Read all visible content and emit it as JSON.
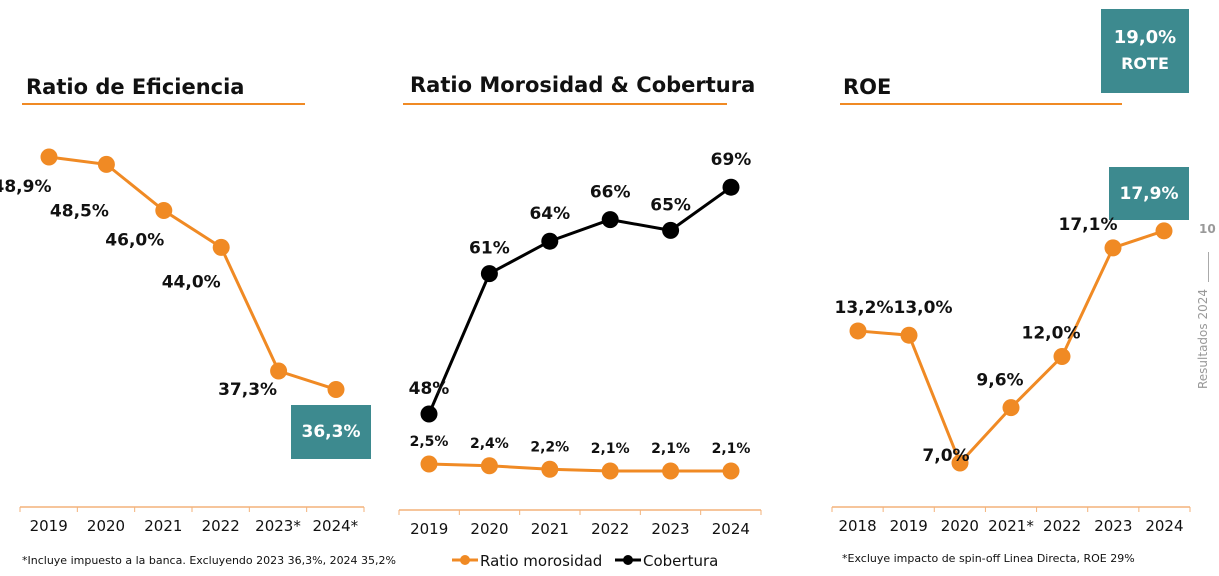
{
  "colors": {
    "orange": "#f08a24",
    "black": "#000000",
    "teal": "#3d8a8f"
  },
  "chart_data": [
    {
      "type": "line",
      "title": "Ratio de Eficiencia",
      "categories": [
        "2019",
        "2020",
        "2021",
        "2022",
        "2023*",
        "2024*"
      ],
      "series": [
        {
          "values": [
            48.9,
            48.5,
            46.0,
            44.0,
            37.3,
            36.3
          ],
          "labels": [
            "48,9%",
            "48,5%",
            "46,0%",
            "44,0%",
            "37,3%",
            "36,3%"
          ],
          "color": "#f08a24"
        }
      ],
      "footnote": "*Incluye impuesto a la banca.  Excluyendo 2023 36,3%, 2024 35,2%",
      "highlight": "36,3%"
    },
    {
      "type": "line",
      "title": "Ratio Morosidad & Cobertura",
      "categories": [
        "2019",
        "2020",
        "2021",
        "2022",
        "2023",
        "2024"
      ],
      "series": [
        {
          "name": "Ratio morosidad",
          "values": [
            2.5,
            2.4,
            2.2,
            2.1,
            2.1,
            2.1
          ],
          "labels": [
            "2,5%",
            "2,4%",
            "2,2%",
            "2,1%",
            "2,1%",
            "2,1%"
          ],
          "color": "#f08a24"
        },
        {
          "name": "Cobertura",
          "values": [
            48,
            61,
            64,
            66,
            65,
            69
          ],
          "labels": [
            "48%",
            "61%",
            "64%",
            "66%",
            "65%",
            "69%"
          ],
          "color": "#000000"
        }
      ],
      "legend": "bottom"
    },
    {
      "type": "line",
      "title": "ROE",
      "categories": [
        "2018",
        "2019",
        "2020",
        "2021*",
        "2022",
        "2023",
        "2024"
      ],
      "series": [
        {
          "values": [
            13.2,
            13.0,
            7.0,
            9.6,
            12.0,
            17.1,
            17.9
          ],
          "labels": [
            "13,2%",
            "13,0%",
            "7,0%",
            "9,6%",
            "12,0%",
            "17,1%",
            "17,9%"
          ],
          "color": "#f08a24"
        }
      ],
      "footnote": "*Excluye impacto de spin-off Linea Directa, ROE 29%",
      "highlight": "17,9%",
      "rote": {
        "value": "19,0%",
        "label": "ROTE"
      }
    }
  ],
  "page": {
    "number": "10",
    "section": "Resultados 2024"
  }
}
